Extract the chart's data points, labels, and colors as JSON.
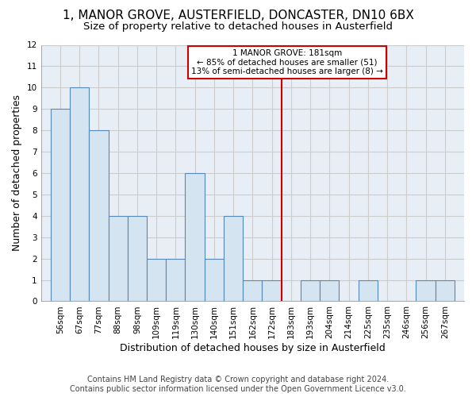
{
  "title": "1, MANOR GROVE, AUSTERFIELD, DONCASTER, DN10 6BX",
  "subtitle": "Size of property relative to detached houses in Austerfield",
  "xlabel": "Distribution of detached houses by size in Austerfield",
  "ylabel": "Number of detached properties",
  "footer1": "Contains HM Land Registry data © Crown copyright and database right 2024.",
  "footer2": "Contains public sector information licensed under the Open Government Licence v3.0.",
  "annotation_title": "1 MANOR GROVE: 181sqm",
  "annotation_line1": "← 85% of detached houses are smaller (51)",
  "annotation_line2": "13% of semi-detached houses are larger (8) →",
  "bin_edges": [
    0,
    1,
    2,
    3,
    4,
    5,
    6,
    7,
    8,
    9,
    10,
    11,
    12,
    13,
    14,
    15,
    16,
    17,
    18,
    19,
    20,
    21
  ],
  "bin_labels": [
    "56sqm",
    "67sqm",
    "77sqm",
    "88sqm",
    "98sqm",
    "109sqm",
    "119sqm",
    "130sqm",
    "140sqm",
    "151sqm",
    "162sqm",
    "172sqm",
    "183sqm",
    "193sqm",
    "204sqm",
    "214sqm",
    "225sqm",
    "235sqm",
    "246sqm",
    "256sqm",
    "267sqm"
  ],
  "bar_values": [
    9,
    10,
    8,
    4,
    4,
    2,
    2,
    6,
    2,
    4,
    1,
    1,
    0,
    1,
    1,
    0,
    1,
    0,
    0,
    1,
    1
  ],
  "bar_color": "#d4e4f0",
  "bar_edge_color": "#5588bb",
  "vline_x": 12,
  "vline_color": "#cc0000",
  "background_color": "#ffffff",
  "plot_bg_color": "#e8eef5",
  "ylim": [
    0,
    12
  ],
  "yticks": [
    0,
    1,
    2,
    3,
    4,
    5,
    6,
    7,
    8,
    9,
    10,
    11,
    12
  ],
  "annotation_box_color": "#cc0000",
  "grid_color": "#cccccc",
  "title_fontsize": 11,
  "subtitle_fontsize": 9.5,
  "axis_label_fontsize": 9,
  "tick_fontsize": 7.5,
  "footer_fontsize": 7
}
